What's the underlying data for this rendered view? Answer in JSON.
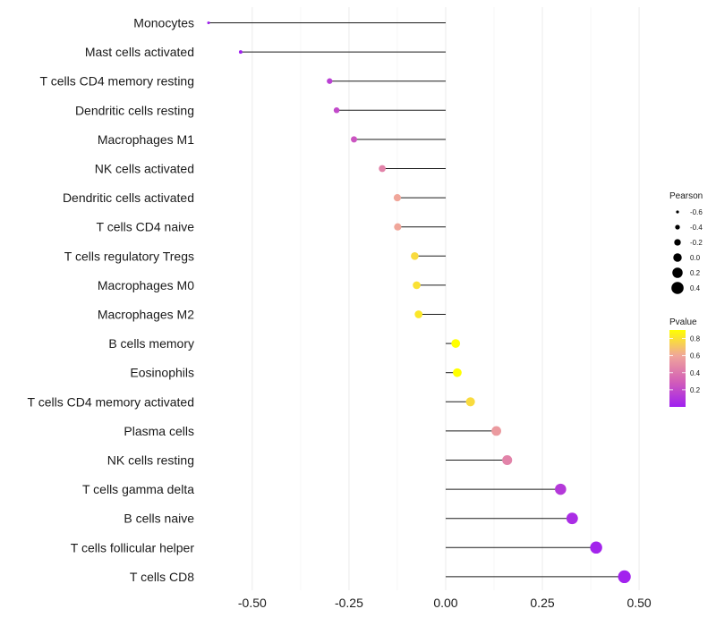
{
  "chart_data": {
    "type": "lollipop",
    "title": "",
    "xlabel": "",
    "ylabel": "",
    "xlim": [
      -0.62,
      0.56
    ],
    "x_ticks": [
      -0.5,
      -0.25,
      0.0,
      0.25,
      0.5
    ],
    "x_tick_labels": [
      "-0.50",
      "-0.25",
      "0.00",
      "0.25",
      "0.50"
    ],
    "grid": true,
    "categories": [
      "Monocytes",
      "Mast cells activated",
      "T cells CD4 memory resting",
      "Dendritic cells resting",
      "Macrophages M1",
      "NK cells activated",
      "Dendritic cells activated",
      "T cells CD4 naive",
      "T cells regulatory  Tregs ",
      "Macrophages M0",
      "Macrophages M2",
      "B cells memory",
      "Eosinophils",
      "T cells CD4 memory activated",
      "Plasma cells",
      "NK cells resting",
      "T cells gamma delta",
      "B cells naive",
      "T cells follicular helper",
      "T cells CD8"
    ],
    "pearson": [
      -0.613,
      -0.53,
      -0.3,
      -0.282,
      -0.237,
      -0.164,
      -0.125,
      -0.124,
      -0.08,
      -0.075,
      -0.07,
      0.026,
      0.03,
      0.064,
      0.131,
      0.159,
      0.297,
      0.327,
      0.389,
      0.462
    ],
    "pvalue": [
      0.0005,
      0.001,
      0.15,
      0.2,
      0.25,
      0.45,
      0.6,
      0.6,
      0.78,
      0.8,
      0.82,
      0.92,
      0.9,
      0.78,
      0.55,
      0.45,
      0.12,
      0.06,
      0.02,
      0.01
    ],
    "size_legend": {
      "title": "Pearson",
      "values": [
        -0.6,
        -0.4,
        -0.2,
        0.0,
        0.2,
        0.4
      ],
      "labels": [
        "-0.6",
        "-0.4",
        "-0.2",
        "0.0",
        "0.2",
        "0.4"
      ]
    },
    "color_legend": {
      "title": "Pvalue",
      "range": [
        0,
        0.9
      ],
      "ticks": [
        0.2,
        0.4,
        0.6,
        0.8
      ],
      "labels": [
        "0.2",
        "0.4",
        "0.6",
        "0.8"
      ],
      "colors": [
        "#a020f0",
        "#d35fb7",
        "#f0a69a",
        "#ffff00"
      ]
    },
    "legend_position": "right"
  }
}
